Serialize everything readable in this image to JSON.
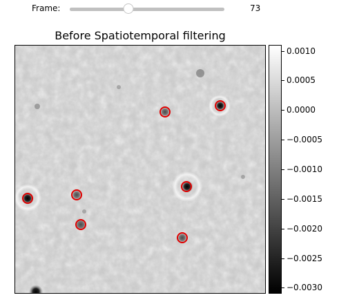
{
  "slider": {
    "label": "Frame:",
    "value": "73",
    "fraction": 0.38
  },
  "plot": {
    "title": "Before Spatiotemporal filtering"
  },
  "colorbar": {
    "ticks": [
      "0.0010",
      "0.0005",
      "0.0000",
      "−0.0005",
      "−0.0010",
      "−0.0015",
      "−0.0020",
      "−0.0025",
      "−0.0030"
    ],
    "vmin": -0.0031,
    "vmax": 0.0011
  },
  "markers": {
    "edge_color": "#e00000",
    "count": 7
  },
  "colors": {
    "background_gray": "#c9c9c9",
    "track": "#c0c0c0"
  }
}
